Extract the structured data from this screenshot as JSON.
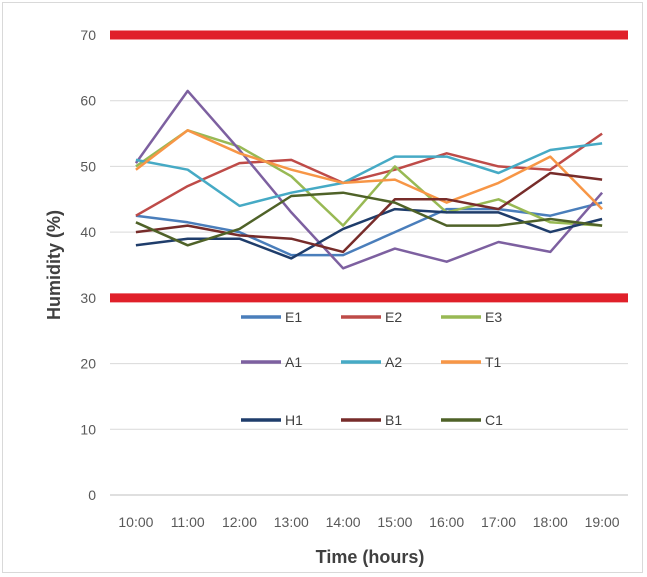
{
  "chart_data": {
    "type": "line",
    "title": "",
    "xlabel": "Time (hours)",
    "ylabel": "Humidity (%)",
    "ylim": [
      0,
      70
    ],
    "yticks": [
      0,
      10,
      20,
      30,
      40,
      50,
      60,
      70
    ],
    "categories": [
      "10:00",
      "11:00",
      "12:00",
      "13:00",
      "14:00",
      "15:00",
      "16:00",
      "17:00",
      "18:00",
      "19:00"
    ],
    "grid": true,
    "legend_position": "inside-bottom",
    "reference_lines": [
      {
        "value": 70,
        "color": "#e0202a"
      },
      {
        "value": 30,
        "color": "#e0202a"
      }
    ],
    "series": [
      {
        "name": "E1",
        "color": "#4a7ebb",
        "values": [
          42.5,
          41.5,
          40,
          36.5,
          36.5,
          40,
          43.5,
          43.5,
          42.5,
          44.5
        ]
      },
      {
        "name": "E2",
        "color": "#be4b48",
        "values": [
          42.5,
          47,
          50.5,
          51,
          47.5,
          49.5,
          52,
          50,
          49.5,
          55
        ]
      },
      {
        "name": "E3",
        "color": "#98b954",
        "values": [
          50,
          55.5,
          53,
          48.5,
          41,
          50,
          43,
          45,
          41.5,
          41
        ]
      },
      {
        "name": "A1",
        "color": "#7d60a0",
        "values": [
          50.5,
          61.5,
          52.5,
          43,
          34.5,
          37.5,
          35.5,
          38.5,
          37,
          46
        ]
      },
      {
        "name": "A2",
        "color": "#46aac5",
        "values": [
          51,
          49.5,
          44,
          46,
          47.5,
          51.5,
          51.5,
          49,
          52.5,
          53.5
        ]
      },
      {
        "name": "T1",
        "color": "#f79646",
        "values": [
          49.5,
          55.5,
          52,
          49.5,
          47.5,
          48,
          44.5,
          47.5,
          51.5,
          43.5
        ]
      },
      {
        "name": "H1",
        "color": "#1f3d6b",
        "values": [
          38,
          39,
          39,
          36,
          40.5,
          43.5,
          43,
          43,
          40,
          42
        ]
      },
      {
        "name": "B1",
        "color": "#772c2a",
        "values": [
          40,
          41,
          39.5,
          39,
          37,
          45,
          45,
          43.5,
          49,
          48
        ]
      },
      {
        "name": "C1",
        "color": "#4f6228",
        "values": [
          41.5,
          38,
          40.5,
          45.5,
          46,
          44.5,
          41,
          41,
          42,
          41
        ]
      }
    ]
  }
}
